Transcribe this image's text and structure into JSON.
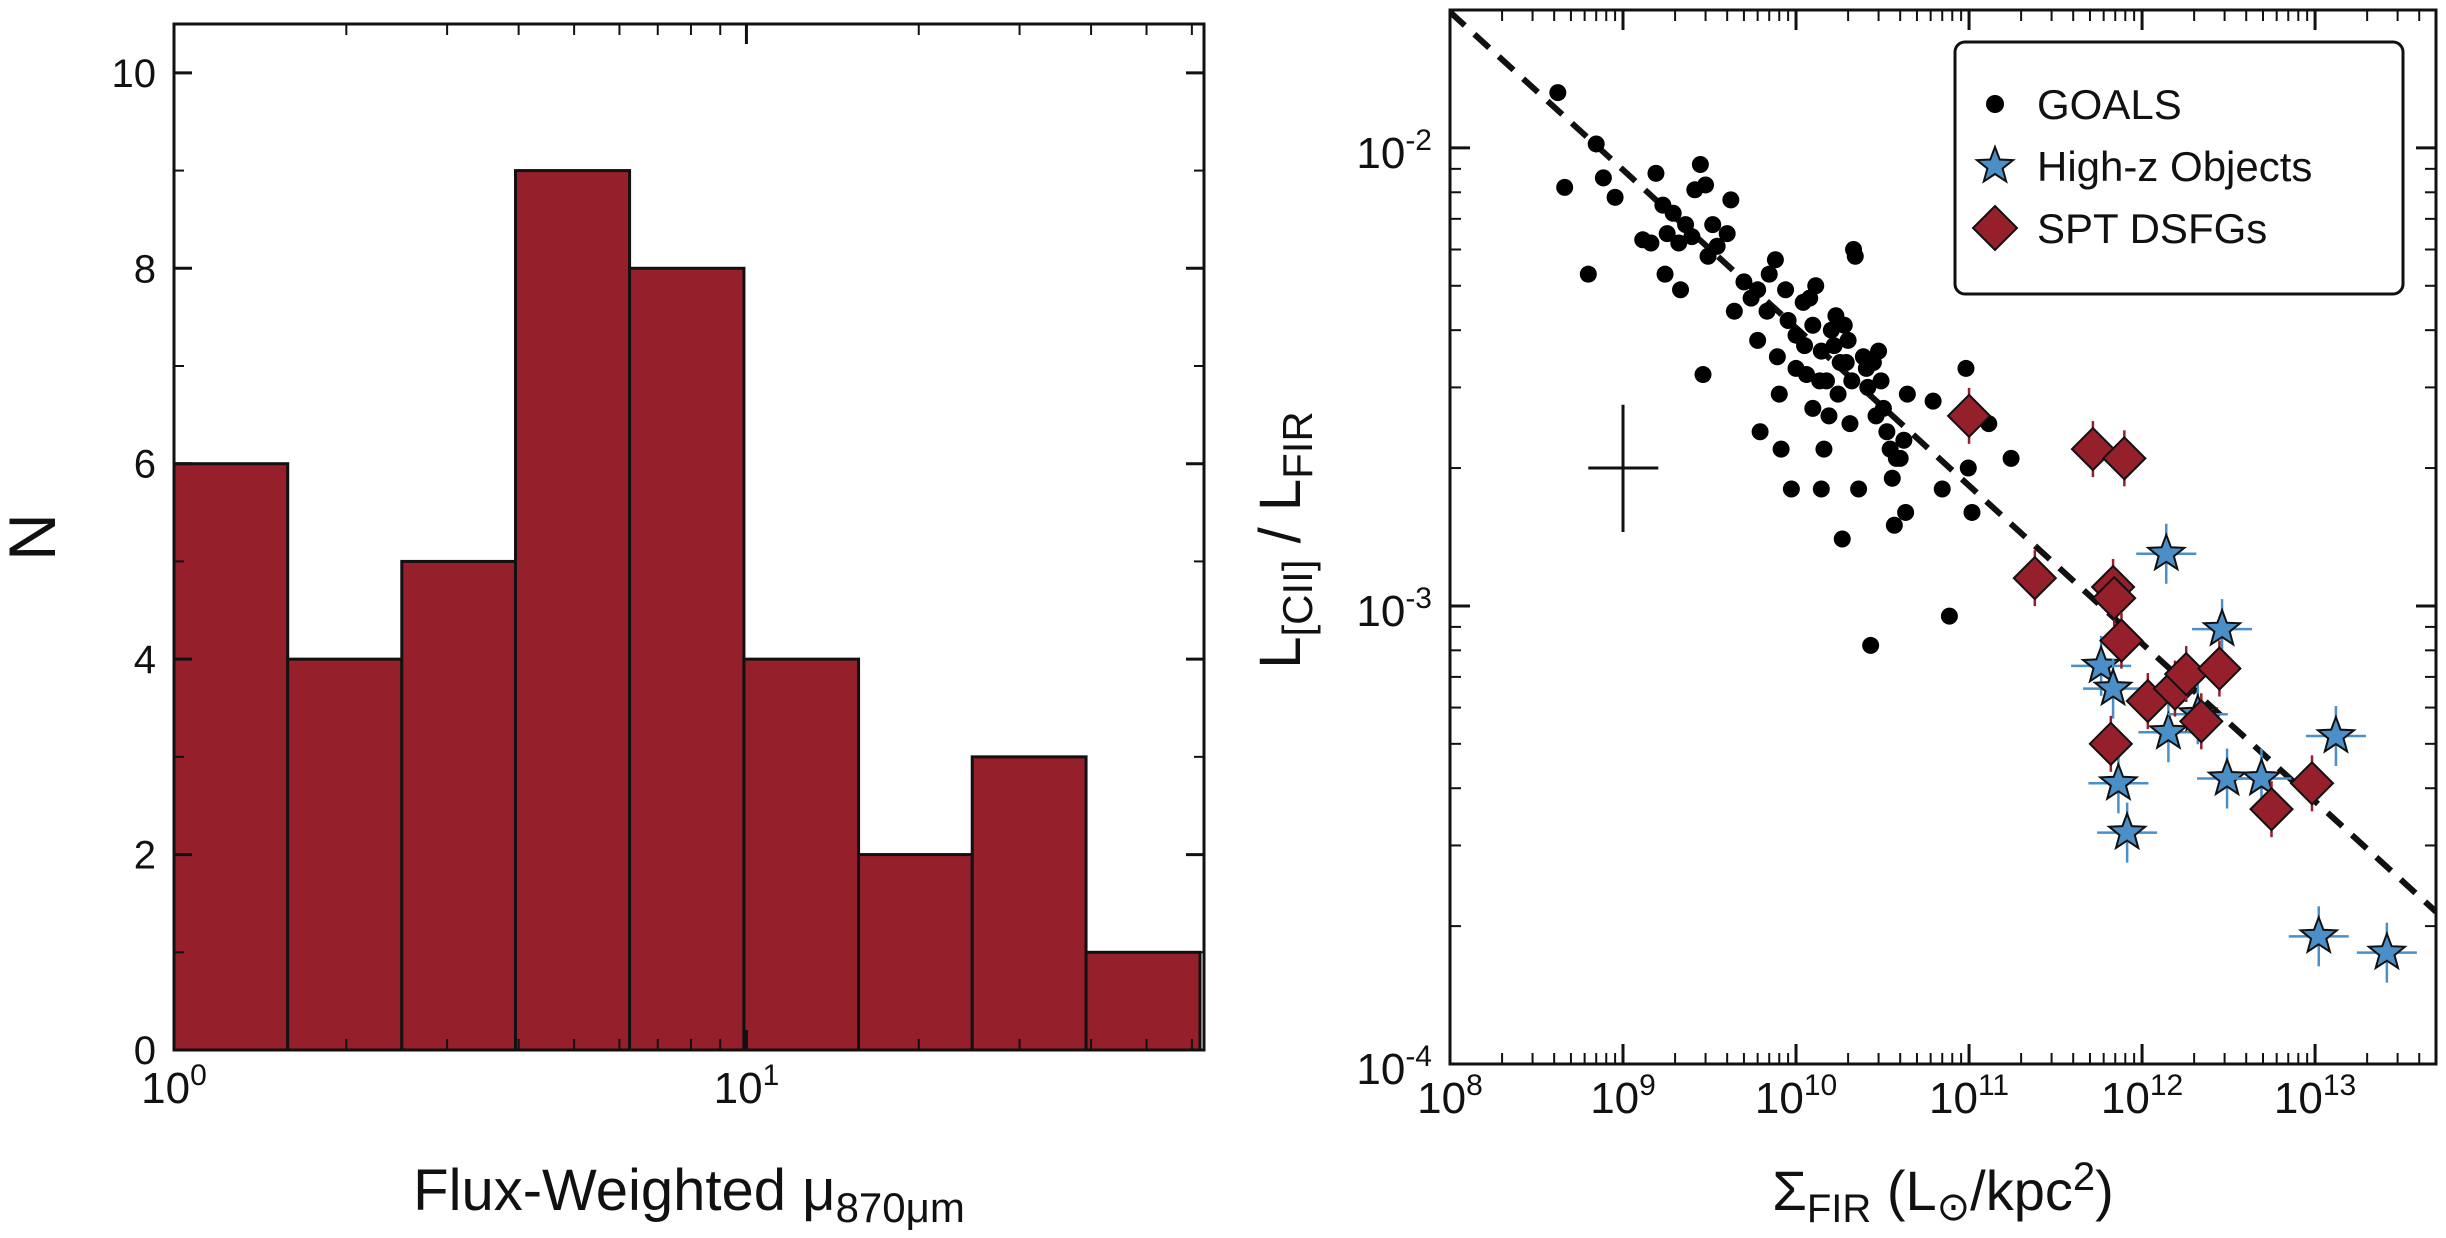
{
  "colors": {
    "bar_fill": "#951f2b",
    "diamond_fill": "#951f2b",
    "star_fill": "#4a8fc7",
    "goals_dot": "#000000",
    "axis": "#111111"
  },
  "chart_data": [
    {
      "type": "bar",
      "title": "",
      "xlabel": "Flux-Weighted μ",
      "xlabel_sub": "870μm",
      "ylabel": "N",
      "xscale": "log",
      "xlim": [
        1,
        63
      ],
      "ylim": [
        0,
        10.5
      ],
      "xticks": [
        {
          "value": 1,
          "base": "10",
          "exp": "0"
        },
        {
          "value": 10,
          "base": "10",
          "exp": "1"
        }
      ],
      "yticks": [
        0,
        2,
        4,
        6,
        8,
        10
      ],
      "bin_edges": [
        1.0,
        1.58,
        2.5,
        3.95,
        6.25,
        9.9,
        15.7,
        24.8,
        39.2,
        62.0
      ],
      "values": [
        6,
        4,
        5,
        9,
        8,
        4,
        2,
        3,
        1
      ]
    },
    {
      "type": "scatter",
      "title": "",
      "xlabel": "Σ",
      "xlabel_sub": "FIR",
      "xlabel_unit_pre": " (L",
      "xlabel_unit_sym": "⊙",
      "xlabel_unit_post": "/kpc",
      "xlabel_unit_sup": "2",
      "xlabel_unit_close": ")",
      "ylabel_main": "L",
      "ylabel_sub1": "[CII]",
      "ylabel_mid": " / L",
      "ylabel_sub2": "FIR",
      "xscale": "log",
      "yscale": "log",
      "xlim": [
        100000000.0,
        50000000000000.0
      ],
      "ylim": [
        0.0001,
        0.02
      ],
      "xticks": [
        {
          "value": 100000000.0,
          "base": "10",
          "exp": "8"
        },
        {
          "value": 1000000000.0,
          "base": "10",
          "exp": "9"
        },
        {
          "value": 10000000000.0,
          "base": "10",
          "exp": "10"
        },
        {
          "value": 100000000000.0,
          "base": "10",
          "exp": "11"
        },
        {
          "value": 1000000000000.0,
          "base": "10",
          "exp": "12"
        },
        {
          "value": 10000000000000.0,
          "base": "10",
          "exp": "13"
        }
      ],
      "yticks": [
        {
          "value": 0.0001,
          "base": "10",
          "exp": "-4"
        },
        {
          "value": 0.001,
          "base": "10",
          "exp": "-3"
        },
        {
          "value": 0.01,
          "base": "10",
          "exp": "-2"
        }
      ],
      "legend_position": "top-right",
      "fit_line": {
        "x": [
          100000000.0,
          50000000000000.0
        ],
        "y": [
          0.0198,
          0.000215
        ]
      },
      "typical_error": {
        "x": 1000000000.0,
        "y": 0.002,
        "x_range": [
          630000000.0,
          1600000000.0
        ],
        "y_range": [
          0.00145,
          0.00275
        ]
      },
      "series": [
        {
          "name": "GOALS",
          "marker": "circle",
          "points": [
            [
              420000000.0,
              0.0132
            ],
            [
              460000000.0,
              0.0082
            ],
            [
              630000000.0,
              0.0053
            ],
            [
              700000000.0,
              0.0102
            ],
            [
              770000000.0,
              0.0086
            ],
            [
              900000000.0,
              0.0078
            ],
            [
              1300000000.0,
              0.0063
            ],
            [
              1450000000.0,
              0.0062
            ],
            [
              1550000000.0,
              0.0088
            ],
            [
              1700000000.0,
              0.0075
            ],
            [
              1800000000.0,
              0.0065
            ],
            [
              1750000000.0,
              0.0053
            ],
            [
              1950000000.0,
              0.0072
            ],
            [
              2100000000.0,
              0.0062
            ],
            [
              2150000000.0,
              0.0049
            ],
            [
              2300000000.0,
              0.0068
            ],
            [
              2500000000.0,
              0.0064
            ],
            [
              2600000000.0,
              0.0081
            ],
            [
              2800000000.0,
              0.0092
            ],
            [
              3000000000.0,
              0.0083
            ],
            [
              3100000000.0,
              0.0058
            ],
            [
              2900000000.0,
              0.0032
            ],
            [
              3300000000.0,
              0.0068
            ],
            [
              3500000000.0,
              0.0061
            ],
            [
              4000000000.0,
              0.0065
            ],
            [
              4200000000.0,
              0.0077
            ],
            [
              4400000000.0,
              0.0044
            ],
            [
              5000000000.0,
              0.0051
            ],
            [
              5500000000.0,
              0.0047
            ],
            [
              6000000000.0,
              0.0049
            ],
            [
              6200000000.0,
              0.0024
            ],
            [
              6800000000.0,
              0.0044
            ],
            [
              7000000000.0,
              0.0053
            ],
            [
              7600000000.0,
              0.0057
            ],
            [
              7800000000.0,
              0.0035
            ],
            [
              8200000000.0,
              0.0022
            ],
            [
              8700000000.0,
              0.0049
            ],
            [
              9000000000.0,
              0.0042
            ],
            [
              9400000000.0,
              0.0018
            ],
            [
              10000000000.0,
              0.0039
            ],
            [
              11000000000.0,
              0.0046
            ],
            [
              11200000000.0,
              0.0037
            ],
            [
              11500000000.0,
              0.0032
            ],
            [
              12000000000.0,
              0.0047
            ],
            [
              12500000000.0,
              0.0041
            ],
            [
              13000000000.0,
              0.005
            ],
            [
              13700000000.0,
              0.0031
            ],
            [
              14000000000.0,
              0.0036
            ],
            [
              14500000000.0,
              0.0022
            ],
            [
              15000000000.0,
              0.0031
            ],
            [
              15500000000.0,
              0.0026
            ],
            [
              16000000000.0,
              0.004
            ],
            [
              16600000000.0,
              0.0037
            ],
            [
              17000000000.0,
              0.0043
            ],
            [
              17500000000.0,
              0.0029
            ],
            [
              18000000000.0,
              0.0034
            ],
            [
              18500000000.0,
              0.0014
            ],
            [
              19000000000.0,
              0.0041
            ],
            [
              19500000000.0,
              0.0034
            ],
            [
              20000000000.0,
              0.0038
            ],
            [
              20500000000.0,
              0.0025
            ],
            [
              21000000000.0,
              0.0031
            ],
            [
              21500000000.0,
              0.006
            ],
            [
              22000000000.0,
              0.0058
            ],
            [
              23000000000.0,
              0.0018
            ],
            [
              24500000000.0,
              0.0035
            ],
            [
              25500000000.0,
              0.0033
            ],
            [
              26000000000.0,
              0.003
            ],
            [
              27000000000.0,
              0.00082
            ],
            [
              28000000000.0,
              0.0034
            ],
            [
              29000000000.0,
              0.0026
            ],
            [
              30000000000.0,
              0.0036
            ],
            [
              31000000000.0,
              0.0031
            ],
            [
              32000000000.0,
              0.0027
            ],
            [
              33500000000.0,
              0.0024
            ],
            [
              35000000000.0,
              0.0022
            ],
            [
              36000000000.0,
              0.0019
            ],
            [
              37000000000.0,
              0.0015
            ],
            [
              38000000000.0,
              0.0021
            ],
            [
              40000000000.0,
              0.0021
            ],
            [
              42000000000.0,
              0.0023
            ],
            [
              43000000000.0,
              0.0016
            ],
            [
              44000000000.0,
              0.0029
            ],
            [
              62000000000.0,
              0.0028
            ],
            [
              70000000000.0,
              0.0018
            ],
            [
              77000000000.0,
              0.00095
            ],
            [
              96000000000.0,
              0.0033
            ],
            [
              99000000000.0,
              0.002
            ],
            [
              104000000000.0,
              0.0016
            ],
            [
              130000000000.0,
              0.0025
            ],
            [
              175000000000.0,
              0.0021
            ],
            [
              14000000000.0,
              0.0018
            ],
            [
              12500000000.0,
              0.0027
            ],
            [
              10000000000.0,
              0.0033
            ],
            [
              8000000000.0,
              0.0029
            ],
            [
              6000000000.0,
              0.0038
            ]
          ]
        },
        {
          "name": "High-z Objects",
          "marker": "star",
          "points": [
            [
              580000000000.0,
              0.00074
            ],
            [
              680000000000.0,
              0.00066
            ],
            [
              730000000000.0,
              0.00041
            ],
            [
              820000000000.0,
              0.00032
            ],
            [
              1380000000000.0,
              0.0013
            ],
            [
              1420000000000.0,
              0.00053
            ],
            [
              2100000000000.0,
              0.00058
            ],
            [
              2900000000000.0,
              0.00089
            ],
            [
              3100000000000.0,
              0.00042
            ],
            [
              4900000000000.0,
              0.00042
            ],
            [
              10500000000000.0,
              0.00019
            ],
            [
              13200000000000.0,
              0.00052
            ],
            [
              26000000000000.0,
              0.000175
            ]
          ]
        },
        {
          "name": "SPT DSFGs",
          "marker": "diamond",
          "points": [
            [
              100000000000.0,
              0.0026
            ],
            [
              240000000000.0,
              0.00115
            ],
            [
              520000000000.0,
              0.0022
            ],
            [
              680000000000.0,
              0.0011
            ],
            [
              690000000000.0,
              0.00104
            ],
            [
              660000000000.0,
              0.0005
            ],
            [
              760000000000.0,
              0.00084
            ],
            [
              790000000000.0,
              0.0021
            ],
            [
              1080000000000.0,
              0.00062
            ],
            [
              1550000000000.0,
              0.00066
            ],
            [
              1800000000000.0,
              0.00071
            ],
            [
              2200000000000.0,
              0.00056
            ],
            [
              2800000000000.0,
              0.00073
            ],
            [
              5600000000000.0,
              0.00036
            ],
            [
              9600000000000.0,
              0.00041
            ]
          ]
        }
      ]
    }
  ]
}
